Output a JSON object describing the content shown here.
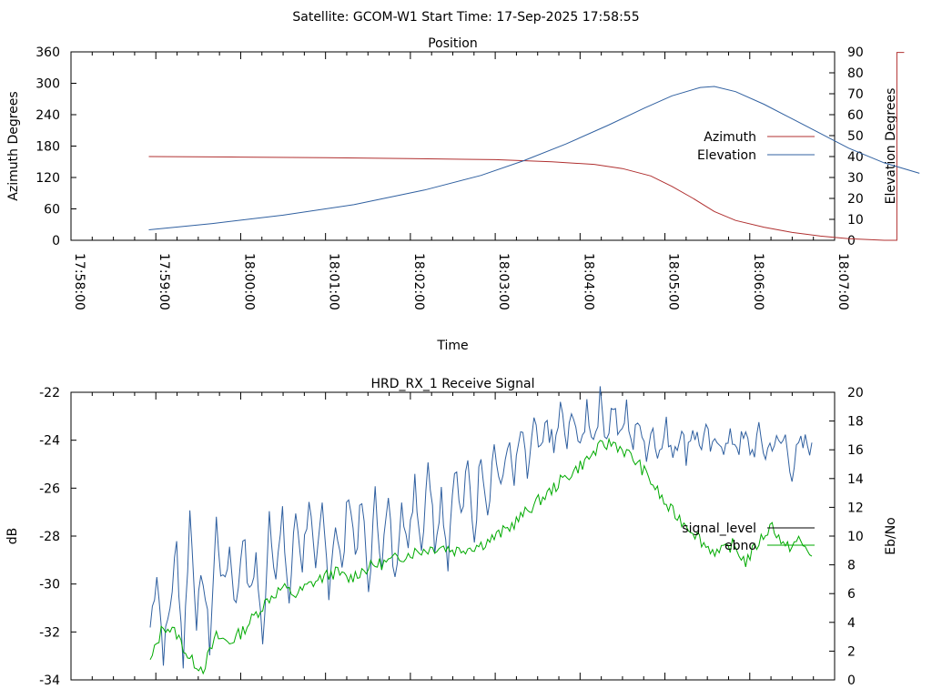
{
  "header": {
    "title": "Satellite: GCOM-W1    Start Time: 17-Sep-2025 17:58:55"
  },
  "chart_data": [
    {
      "type": "line",
      "title": "Position",
      "xlabel": "Time",
      "ylabel": "Azimuth Degrees",
      "y2label": "Elevation Degrees",
      "xticks": [
        "17:58:00",
        "17:59:00",
        "18:00:00",
        "18:01:00",
        "18:02:00",
        "18:03:00",
        "18:04:00",
        "18:05:00",
        "18:06:00",
        "18:07:00"
      ],
      "xlim_seconds": [
        0,
        540
      ],
      "ylim": [
        0,
        360
      ],
      "yticks": [
        "0",
        "60",
        "120",
        "180",
        "240",
        "300",
        "360"
      ],
      "y2lim": [
        0,
        90
      ],
      "y2ticks": [
        "0",
        "10",
        "20",
        "30",
        "40",
        "50",
        "60",
        "70",
        "80",
        "90"
      ],
      "legend_position": "right",
      "series": [
        {
          "name": "Azimuth",
          "axis": "y",
          "color": "#b03030",
          "points": [
            [
              55,
              160
            ],
            [
              120,
              159
            ],
            [
              180,
              158
            ],
            [
              240,
              156
            ],
            [
              300,
              154
            ],
            [
              340,
              150
            ],
            [
              370,
              145
            ],
            [
              390,
              137
            ],
            [
              410,
              123
            ],
            [
              425,
              103
            ],
            [
              440,
              80
            ],
            [
              455,
              55
            ],
            [
              470,
              38
            ],
            [
              490,
              25
            ],
            [
              510,
              15
            ],
            [
              530,
              8
            ],
            [
              550,
              3
            ],
            [
              575,
              0
            ]
          ],
          "wrap_at_time": 584,
          "wrap_to": 359
        },
        {
          "name": "Elevation",
          "axis": "y2",
          "color": "#3060a0",
          "points": [
            [
              55,
              5
            ],
            [
              100,
              8
            ],
            [
              150,
              12
            ],
            [
              200,
              17
            ],
            [
              250,
              24
            ],
            [
              290,
              31
            ],
            [
              320,
              38
            ],
            [
              350,
              46
            ],
            [
              380,
              55
            ],
            [
              405,
              63
            ],
            [
              425,
              69
            ],
            [
              445,
              73
            ],
            [
              455,
              73.5
            ],
            [
              470,
              71
            ],
            [
              490,
              65
            ],
            [
              510,
              58
            ],
            [
              530,
              51
            ],
            [
              550,
              44
            ],
            [
              575,
              37
            ],
            [
              600,
              32
            ]
          ]
        }
      ]
    },
    {
      "type": "line",
      "title": "HRD_RX_1 Receive Signal",
      "ylabel": "dB",
      "y2label": "Eb/No",
      "ylim": [
        -34,
        -22
      ],
      "yticks": [
        "-22",
        "-24",
        "-26",
        "-28",
        "-30",
        "-32",
        "-34"
      ],
      "y2lim": [
        0,
        20
      ],
      "y2ticks": [
        "0",
        "2",
        "4",
        "6",
        "8",
        "10",
        "12",
        "14",
        "16",
        "18",
        "20"
      ],
      "legend_position": "right",
      "series": [
        {
          "name": "signal_level",
          "axis": "y",
          "color": "#3060a0",
          "points": [
            [
              0.0,
              -31.8
            ],
            [
              0.01,
              -29.4
            ],
            [
              0.02,
              -32.9
            ],
            [
              0.03,
              -30.9
            ],
            [
              0.04,
              -28.4
            ],
            [
              0.05,
              -33.2
            ],
            [
              0.06,
              -27.0
            ],
            [
              0.07,
              -31.4
            ],
            [
              0.08,
              -29.6
            ],
            [
              0.09,
              -32.6
            ],
            [
              0.1,
              -27.4
            ],
            [
              0.11,
              -30.2
            ],
            [
              0.12,
              -28.5
            ],
            [
              0.13,
              -31.1
            ],
            [
              0.14,
              -27.7
            ],
            [
              0.15,
              -30.6
            ],
            [
              0.16,
              -28.8
            ],
            [
              0.17,
              -32.7
            ],
            [
              0.18,
              -26.9
            ],
            [
              0.19,
              -29.7
            ],
            [
              0.2,
              -27.3
            ],
            [
              0.21,
              -30.8
            ],
            [
              0.22,
              -27.0
            ],
            [
              0.23,
              -29.2
            ],
            [
              0.24,
              -26.3
            ],
            [
              0.25,
              -29.9
            ],
            [
              0.26,
              -26.9
            ],
            [
              0.27,
              -30.1
            ],
            [
              0.28,
              -27.3
            ],
            [
              0.29,
              -29.6
            ],
            [
              0.3,
              -25.9
            ],
            [
              0.31,
              -28.7
            ],
            [
              0.32,
              -26.6
            ],
            [
              0.33,
              -30.3
            ],
            [
              0.34,
              -26.4
            ],
            [
              0.35,
              -29.0
            ],
            [
              0.36,
              -26.6
            ],
            [
              0.37,
              -30.1
            ],
            [
              0.38,
              -26.1
            ],
            [
              0.39,
              -28.9
            ],
            [
              0.4,
              -25.4
            ],
            [
              0.41,
              -28.6
            ],
            [
              0.42,
              -24.6
            ],
            [
              0.43,
              -28.3
            ],
            [
              0.44,
              -26.1
            ],
            [
              0.45,
              -29.0
            ],
            [
              0.46,
              -24.8
            ],
            [
              0.47,
              -27.3
            ],
            [
              0.48,
              -25.1
            ],
            [
              0.49,
              -28.1
            ],
            [
              0.5,
              -24.3
            ],
            [
              0.51,
              -26.9
            ],
            [
              0.52,
              -24.1
            ],
            [
              0.53,
              -26.3
            ],
            [
              0.54,
              -23.9
            ],
            [
              0.55,
              -25.9
            ],
            [
              0.56,
              -23.6
            ],
            [
              0.57,
              -25.5
            ],
            [
              0.58,
              -23.4
            ],
            [
              0.59,
              -24.8
            ],
            [
              0.6,
              -23.1
            ],
            [
              0.61,
              -24.6
            ],
            [
              0.62,
              -22.7
            ],
            [
              0.63,
              -24.3
            ],
            [
              0.64,
              -22.6
            ],
            [
              0.65,
              -24.7
            ],
            [
              0.66,
              -22.5
            ],
            [
              0.67,
              -24.0
            ],
            [
              0.68,
              -22.3
            ],
            [
              0.69,
              -23.8
            ],
            [
              0.7,
              -22.4
            ],
            [
              0.71,
              -24.1
            ],
            [
              0.72,
              -22.7
            ],
            [
              0.73,
              -24.3
            ],
            [
              0.74,
              -22.9
            ],
            [
              0.75,
              -24.6
            ],
            [
              0.76,
              -23.3
            ],
            [
              0.77,
              -24.7
            ],
            [
              0.78,
              -23.5
            ],
            [
              0.79,
              -24.4
            ],
            [
              0.8,
              -23.6
            ],
            [
              0.81,
              -24.5
            ],
            [
              0.82,
              -23.4
            ],
            [
              0.83,
              -24.2
            ],
            [
              0.84,
              -23.8
            ],
            [
              0.85,
              -24.6
            ],
            [
              0.86,
              -23.7
            ],
            [
              0.87,
              -24.4
            ],
            [
              0.88,
              -23.9
            ],
            [
              0.89,
              -24.2
            ],
            [
              0.9,
              -24.0
            ],
            [
              0.91,
              -24.5
            ],
            [
              0.92,
              -23.8
            ],
            [
              0.93,
              -24.6
            ],
            [
              0.94,
              -24.0
            ],
            [
              0.95,
              -24.3
            ],
            [
              0.96,
              -23.9
            ],
            [
              0.97,
              -25.3
            ],
            [
              0.98,
              -24.4
            ],
            [
              0.99,
              -24.2
            ],
            [
              1.0,
              -24.1
            ]
          ]
        },
        {
          "name": "ebno",
          "axis": "y2",
          "color": "#00aa00",
          "points": [
            [
              0.0,
              1.2
            ],
            [
              0.02,
              3.8
            ],
            [
              0.04,
              3.2
            ],
            [
              0.06,
              1.4
            ],
            [
              0.08,
              0.8
            ],
            [
              0.1,
              3.0
            ],
            [
              0.12,
              2.6
            ],
            [
              0.14,
              3.4
            ],
            [
              0.16,
              4.6
            ],
            [
              0.18,
              5.7
            ],
            [
              0.2,
              6.4
            ],
            [
              0.22,
              5.9
            ],
            [
              0.24,
              6.6
            ],
            [
              0.26,
              7.1
            ],
            [
              0.28,
              7.5
            ],
            [
              0.3,
              7.0
            ],
            [
              0.32,
              7.6
            ],
            [
              0.34,
              8.0
            ],
            [
              0.36,
              8.2
            ],
            [
              0.38,
              8.6
            ],
            [
              0.4,
              8.9
            ],
            [
              0.42,
              9.1
            ],
            [
              0.44,
              9.3
            ],
            [
              0.46,
              9.0
            ],
            [
              0.48,
              9.2
            ],
            [
              0.5,
              9.4
            ],
            [
              0.52,
              9.9
            ],
            [
              0.54,
              10.5
            ],
            [
              0.56,
              11.3
            ],
            [
              0.58,
              12.2
            ],
            [
              0.6,
              12.9
            ],
            [
              0.62,
              13.8
            ],
            [
              0.64,
              14.5
            ],
            [
              0.66,
              15.3
            ],
            [
              0.68,
              16.2
            ],
            [
              0.7,
              16.5
            ],
            [
              0.72,
              15.8
            ],
            [
              0.74,
              14.9
            ],
            [
              0.76,
              13.6
            ],
            [
              0.78,
              12.1
            ],
            [
              0.8,
              11.2
            ],
            [
              0.82,
              10.4
            ],
            [
              0.84,
              9.3
            ],
            [
              0.86,
              8.8
            ],
            [
              0.88,
              9.4
            ],
            [
              0.9,
              8.2
            ],
            [
              0.92,
              9.6
            ],
            [
              0.94,
              10.8
            ],
            [
              0.96,
              9.1
            ],
            [
              0.98,
              9.7
            ],
            [
              1.0,
              8.6
            ]
          ]
        }
      ]
    }
  ]
}
